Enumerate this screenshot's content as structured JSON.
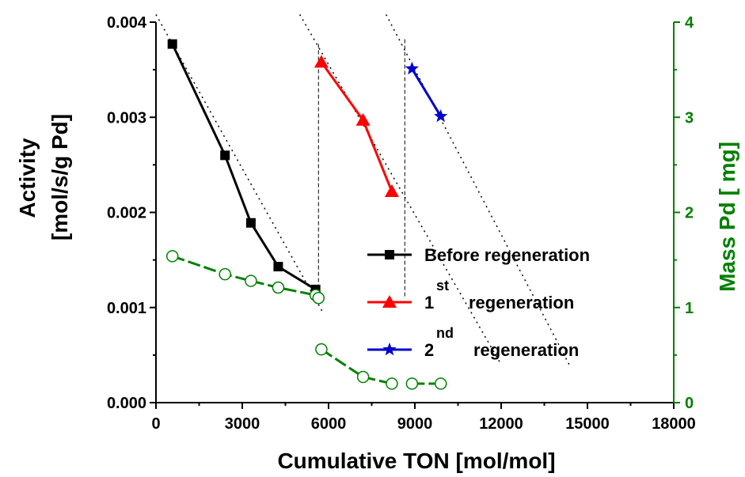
{
  "chart_data": {
    "type": "line",
    "xlabel": "Cumulative TON  [mol/mol]",
    "ylabel_line1": "Activity",
    "ylabel_line2": "[mol/s/g Pd]",
    "y2label": "Mass Pd [ mg]",
    "xlim": [
      0,
      18000
    ],
    "ylim": [
      0,
      0.004
    ],
    "y2lim": [
      0,
      4
    ],
    "x_ticks": [
      0,
      3000,
      6000,
      9000,
      12000,
      15000,
      18000
    ],
    "x_tick_labels": [
      "0",
      "3000",
      "6000",
      "9000",
      "12000",
      "15000",
      "18000"
    ],
    "y_ticks": [
      0,
      0.001,
      0.002,
      0.003,
      0.004
    ],
    "y_tick_labels": [
      "0.000",
      "0.001",
      "0.002",
      "0.003",
      "0.004"
    ],
    "y2_ticks": [
      0,
      1,
      2,
      3,
      4
    ],
    "y2_tick_labels": [
      "0",
      "1",
      "2",
      "3",
      "4"
    ],
    "grid": false,
    "legend_position": "center-right",
    "colors": {
      "before": "#000000",
      "first": "#ff0000",
      "second": "#0000cc",
      "mass": "#008000",
      "right_axis": "#008000"
    },
    "legend": [
      {
        "key": "before",
        "label": "Before regeneration",
        "marker": "square"
      },
      {
        "key": "first",
        "prefix": "1",
        "sup": "st",
        "label": "regeneration",
        "marker": "triangle"
      },
      {
        "key": "second",
        "prefix": "2",
        "sup": "nd",
        "label": "regeneration",
        "marker": "star"
      }
    ],
    "series": [
      {
        "key": "before",
        "axis": "left",
        "marker": "square",
        "x": [
          570,
          2400,
          3300,
          4250,
          5550
        ],
        "y": [
          0.00377,
          0.0026,
          0.00189,
          0.00143,
          0.00119
        ]
      },
      {
        "key": "first",
        "axis": "left",
        "marker": "triangle",
        "x": [
          5750,
          7200,
          8200
        ],
        "y": [
          0.00358,
          0.00297,
          0.00222
        ]
      },
      {
        "key": "second",
        "axis": "left",
        "marker": "star",
        "x": [
          8900,
          9900
        ],
        "y": [
          0.00351,
          0.00301
        ]
      },
      {
        "key": "mass",
        "axis": "right",
        "marker": "open-circle",
        "segments": [
          {
            "x": [
              570,
              2400,
              3300,
              4250,
              5550,
              5650
            ],
            "y": [
              1.54,
              1.35,
              1.28,
              1.21,
              1.13,
              1.1
            ]
          },
          {
            "x": [
              5750,
              7200,
              8200
            ],
            "y": [
              0.56,
              0.27,
              0.2
            ]
          },
          {
            "x": [
              8900,
              9900
            ],
            "y": [
              0.2,
              0.2
            ]
          }
        ]
      }
    ],
    "trend_lines": [
      {
        "x": [
          0,
          5800
        ],
        "y": [
          0.00408,
          0.00095
        ]
      },
      {
        "x": [
          5000,
          12000
        ],
        "y": [
          0.00408,
          0.0004
        ]
      },
      {
        "x": [
          8000,
          14400
        ],
        "y": [
          0.00408,
          0.00038
        ]
      }
    ],
    "regeneration_markers": [
      {
        "x": 5650,
        "y_top": 0.00377
      },
      {
        "x": 8650,
        "y_top": 0.00382
      }
    ]
  }
}
